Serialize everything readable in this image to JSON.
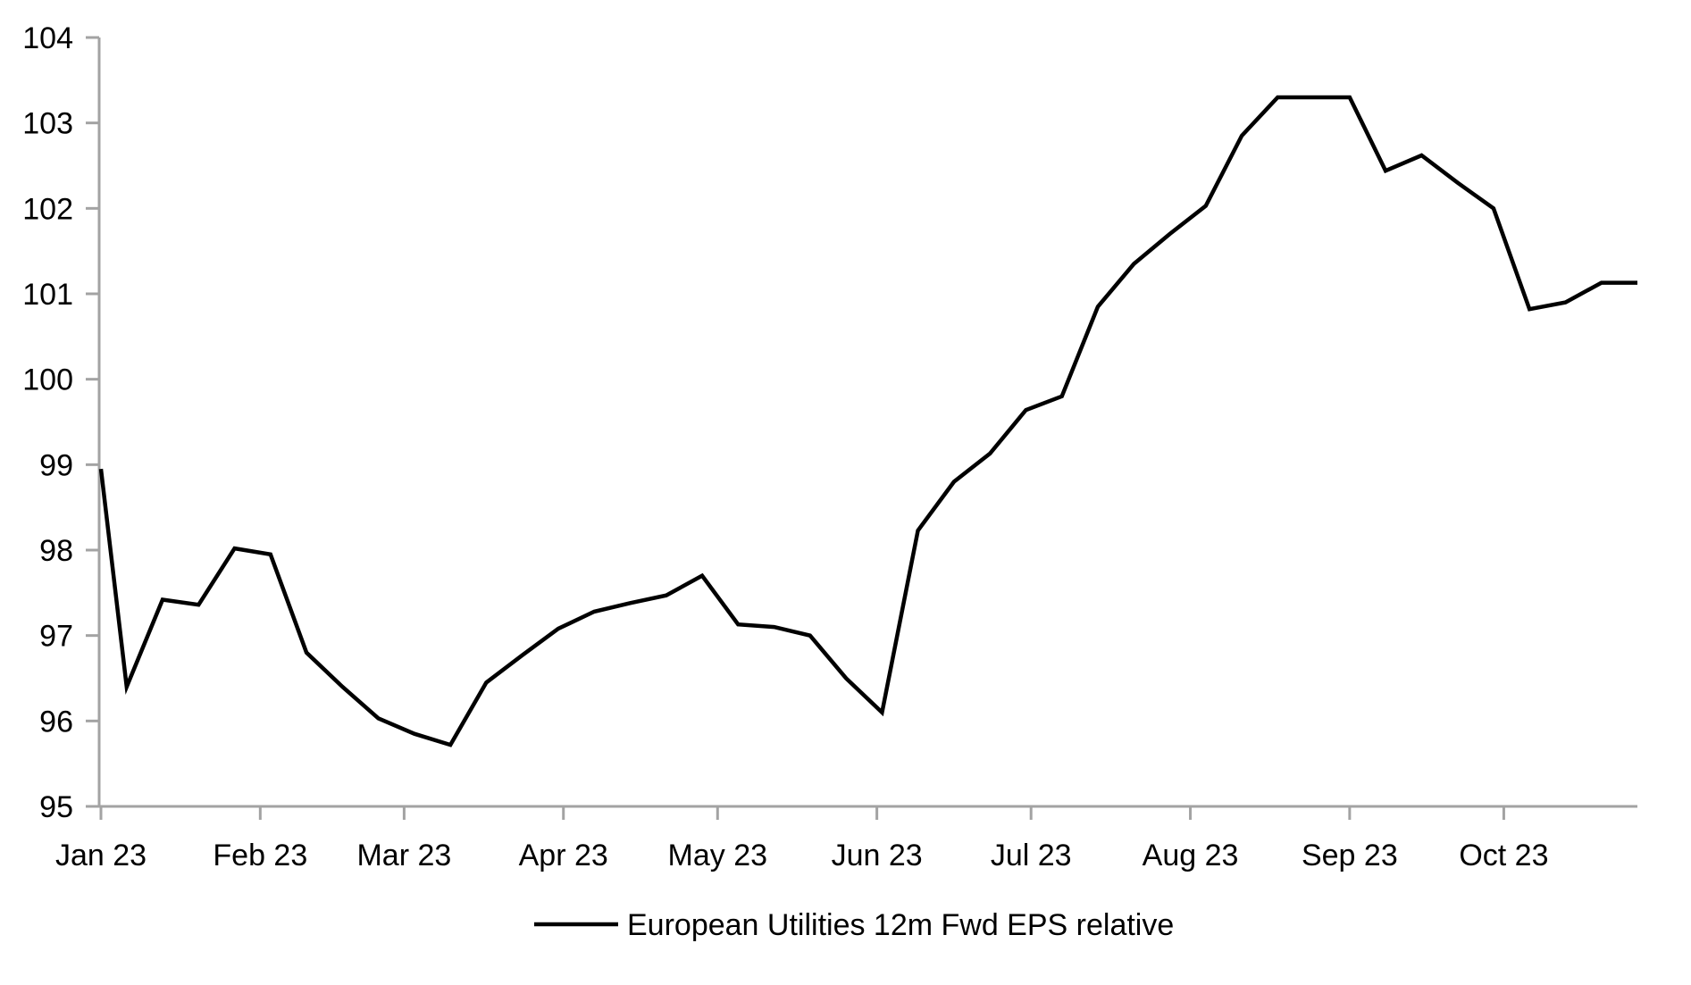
{
  "chart_data": {
    "type": "line",
    "title": "",
    "xlabel": "",
    "ylabel": "",
    "grid": false,
    "background_color": "#ffffff",
    "axis_color": "#a3a3a3",
    "ylim": [
      95,
      104
    ],
    "y_ticks": [
      104,
      103,
      102,
      101,
      100,
      99,
      98,
      97,
      96,
      95
    ],
    "x_range_days": [
      0,
      299
    ],
    "x_ticks": [
      {
        "label": "Jan 23",
        "day": 0
      },
      {
        "label": "Feb 23",
        "day": 31
      },
      {
        "label": "Mar 23",
        "day": 59
      },
      {
        "label": "Apr 23",
        "day": 90
      },
      {
        "label": "May 23",
        "day": 120
      },
      {
        "label": "Jun 23",
        "day": 151
      },
      {
        "label": "Jul 23",
        "day": 181
      },
      {
        "label": "Aug 23",
        "day": 212
      },
      {
        "label": "Sep 23",
        "day": 243
      },
      {
        "label": "Oct 23",
        "day": 273
      }
    ],
    "legend_position": "bottom-center",
    "series": [
      {
        "name": "European Utilities 12m Fwd EPS relative",
        "color": "#000000",
        "line_width": 4.5,
        "dates": [
          "2023-01-01",
          "2023-01-06",
          "2023-01-13",
          "2023-01-20",
          "2023-01-27",
          "2023-02-03",
          "2023-02-10",
          "2023-02-17",
          "2023-02-24",
          "2023-03-03",
          "2023-03-10",
          "2023-03-17",
          "2023-03-24",
          "2023-03-31",
          "2023-04-07",
          "2023-04-14",
          "2023-04-21",
          "2023-04-28",
          "2023-05-05",
          "2023-05-12",
          "2023-05-19",
          "2023-05-26",
          "2023-06-02",
          "2023-06-09",
          "2023-06-16",
          "2023-06-23",
          "2023-06-30",
          "2023-07-07",
          "2023-07-14",
          "2023-07-21",
          "2023-07-28",
          "2023-08-04",
          "2023-08-11",
          "2023-08-18",
          "2023-08-25",
          "2023-09-01",
          "2023-09-08",
          "2023-09-15",
          "2023-09-22",
          "2023-09-29",
          "2023-10-06",
          "2023-10-13",
          "2023-10-20",
          "2023-10-27"
        ],
        "days": [
          0,
          5,
          12,
          19,
          26,
          33,
          40,
          47,
          54,
          61,
          68,
          75,
          82,
          89,
          96,
          103,
          110,
          117,
          124,
          131,
          138,
          145,
          152,
          159,
          166,
          173,
          180,
          187,
          194,
          201,
          208,
          215,
          222,
          229,
          236,
          243,
          250,
          257,
          264,
          271,
          278,
          285,
          292,
          299
        ],
        "values": [
          98.95,
          96.4,
          97.42,
          97.36,
          98.02,
          97.95,
          96.8,
          96.4,
          96.03,
          95.85,
          95.72,
          96.45,
          96.77,
          97.08,
          97.28,
          97.38,
          97.47,
          97.7,
          97.13,
          97.1,
          97.0,
          96.5,
          96.1,
          98.23,
          98.8,
          99.13,
          99.64,
          99.8,
          100.85,
          101.35,
          101.7,
          102.03,
          102.85,
          103.3,
          103.3,
          103.3,
          102.44,
          102.62,
          102.3,
          102.0,
          100.82,
          100.9,
          101.13,
          101.13
        ]
      }
    ]
  },
  "legend": {
    "label": "European Utilities 12m Fwd EPS relative"
  }
}
